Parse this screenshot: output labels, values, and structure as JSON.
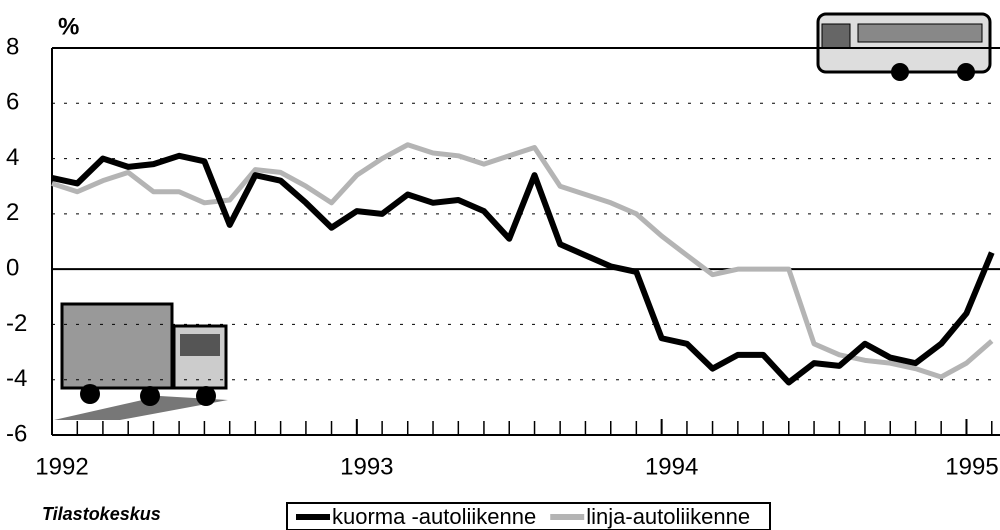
{
  "chart_data": {
    "type": "line",
    "y_label": "%",
    "source": "Tilastokeskus",
    "x": [
      1992.0,
      1992.083,
      1992.167,
      1992.25,
      1992.333,
      1992.417,
      1992.5,
      1992.583,
      1992.667,
      1992.75,
      1992.833,
      1992.917,
      1993.0,
      1993.083,
      1993.167,
      1993.25,
      1993.333,
      1993.417,
      1993.5,
      1993.583,
      1993.667,
      1993.75,
      1993.833,
      1993.917,
      1994.0,
      1994.083,
      1994.167,
      1994.25,
      1994.333,
      1994.417,
      1994.5,
      1994.583,
      1994.667,
      1994.75,
      1994.833,
      1994.917,
      1995.0,
      1995.083
    ],
    "series": [
      {
        "name": "kuorma -autoliikenne",
        "color": "#000000",
        "values": [
          3.3,
          3.1,
          4.0,
          3.7,
          3.8,
          4.1,
          3.9,
          1.6,
          3.4,
          3.2,
          2.4,
          1.5,
          2.1,
          2.0,
          2.7,
          2.4,
          2.5,
          2.1,
          1.1,
          3.4,
          0.9,
          0.5,
          0.1,
          -0.1,
          -2.5,
          -2.7,
          -3.6,
          -3.1,
          -3.1,
          -4.1,
          -3.4,
          -3.5,
          -2.7,
          -3.2,
          -3.4,
          -2.7,
          -1.6,
          0.6
        ]
      },
      {
        "name": "linja-autoliikenne",
        "color": "#b4b4b4",
        "values": [
          3.1,
          2.8,
          3.2,
          3.5,
          2.8,
          2.8,
          2.4,
          2.5,
          3.6,
          3.5,
          3.0,
          2.4,
          3.4,
          4.0,
          4.5,
          4.2,
          4.1,
          3.8,
          4.1,
          4.4,
          3.0,
          2.7,
          2.4,
          2.0,
          1.2,
          0.5,
          -0.2,
          0.0,
          0.0,
          0.0,
          -2.7,
          -3.1,
          -3.3,
          -3.4,
          -3.6,
          -3.9,
          -3.4,
          -2.6
        ]
      }
    ],
    "xlim": [
      1992,
      1995.11
    ],
    "xticks": [
      1992,
      1993,
      1994,
      1995
    ],
    "ylim": [
      -6,
      8
    ],
    "yticks": [
      -6,
      -4,
      -2,
      0,
      2,
      4,
      6,
      8
    ],
    "grid": true
  }
}
